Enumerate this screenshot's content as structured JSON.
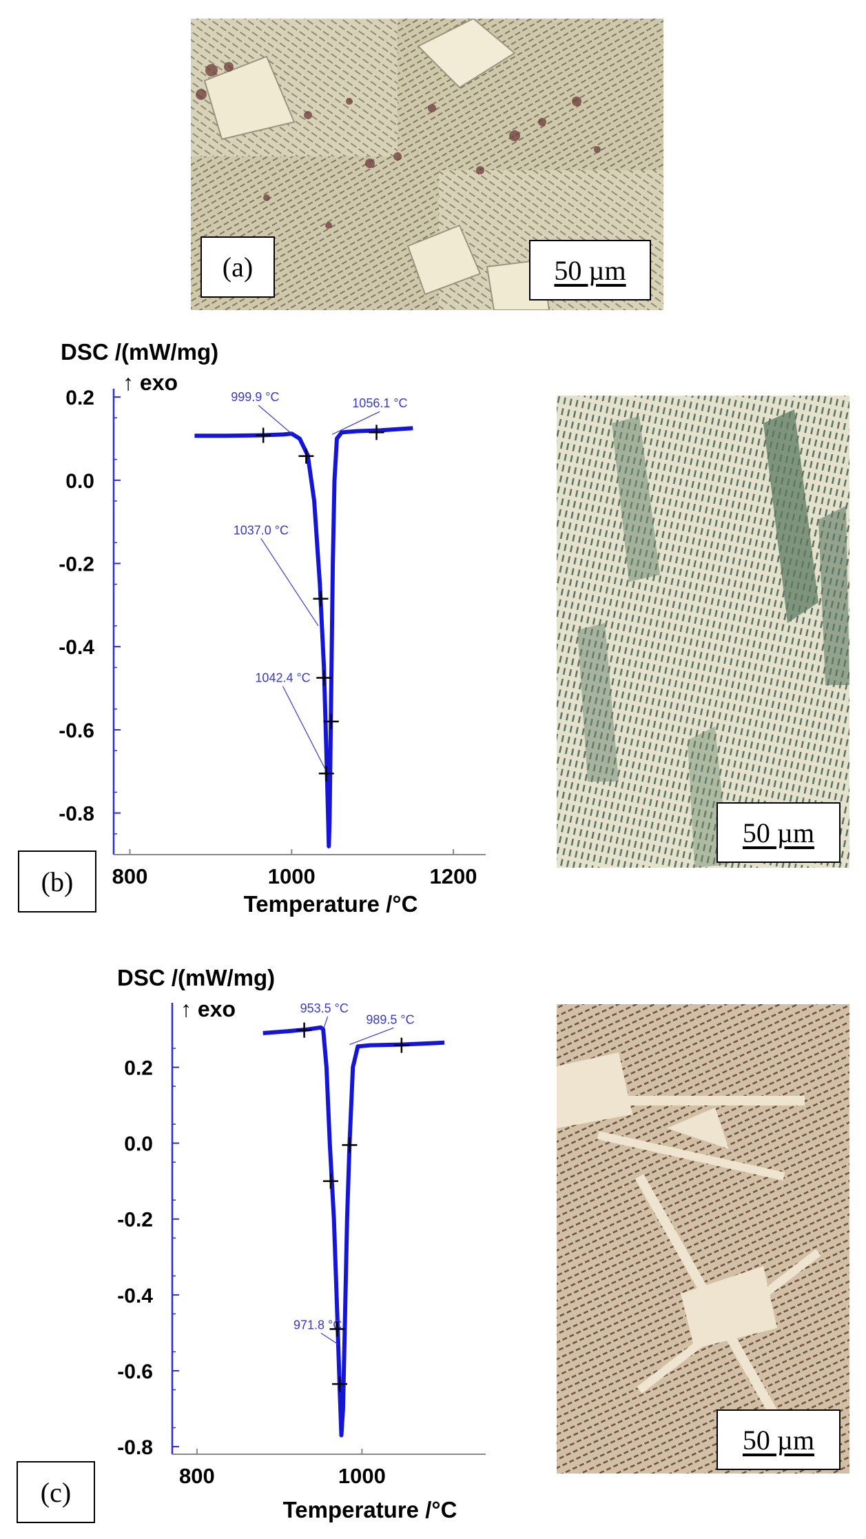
{
  "colors": {
    "curve": "#1515d8",
    "axis": "#2a2ae0",
    "annotation": "#3838c8",
    "text": "#000000"
  },
  "panels": {
    "a": {
      "label": "(a)",
      "scale_bar": "50 µm"
    },
    "b": {
      "label": "(b)",
      "scale_bar": "50 µm"
    },
    "c": {
      "label": "(c)",
      "scale_bar": "50 µm"
    }
  },
  "chart_data": [
    {
      "type": "line",
      "title": "DSC /(mW/mg)",
      "exo_label": "↑ exo",
      "xlabel": "Temperature /°C",
      "ylabel": "DSC /(mW/mg)",
      "xlim": [
        780,
        1240
      ],
      "ylim": [
        -0.9,
        0.22
      ],
      "xticks": [
        800,
        1000,
        1200
      ],
      "xtick_labels": [
        "800",
        "1000",
        "1200"
      ],
      "yticks": [
        0.2,
        0.0,
        -0.2,
        -0.4,
        -0.6,
        -0.8
      ],
      "ytick_labels": [
        "0.2",
        "0.0",
        "-0.2",
        "-0.4",
        "-0.6",
        "-0.8"
      ],
      "series": [
        {
          "points": [
            [
              880,
              0.107
            ],
            [
              920,
              0.107
            ],
            [
              960,
              0.108
            ],
            [
              990,
              0.11
            ],
            [
              1000,
              0.112
            ],
            [
              1010,
              0.1
            ],
            [
              1020,
              0.06
            ],
            [
              1028,
              -0.05
            ],
            [
              1035,
              -0.25
            ],
            [
              1040,
              -0.45
            ],
            [
              1043,
              -0.65
            ],
            [
              1045,
              -0.8
            ],
            [
              1046,
              -0.88
            ],
            [
              1047,
              -0.82
            ],
            [
              1049,
              -0.5
            ],
            [
              1051,
              -0.2
            ],
            [
              1053,
              0.0
            ],
            [
              1056,
              0.1
            ],
            [
              1062,
              0.115
            ],
            [
              1080,
              0.118
            ],
            [
              1110,
              0.12
            ],
            [
              1150,
              0.125
            ]
          ]
        }
      ],
      "markers": [
        {
          "x": 965,
          "y": 0.108
        },
        {
          "x": 1018,
          "y": 0.058
        },
        {
          "x": 1036,
          "y": -0.285
        },
        {
          "x": 1040,
          "y": -0.475
        },
        {
          "x": 1043,
          "y": -0.705
        },
        {
          "x": 1049,
          "y": -0.58
        },
        {
          "x": 1105,
          "y": 0.115
        }
      ],
      "annotations": [
        {
          "text": "999.9 °C",
          "x": 1000,
          "y": 0.112,
          "tx": 925,
          "ty": 0.19
        },
        {
          "text": "1056.1 °C",
          "x": 1050,
          "y": 0.11,
          "tx": 1075,
          "ty": 0.175
        },
        {
          "text": "1037.0 °C",
          "x": 1033,
          "y": -0.35,
          "tx": 928,
          "ty": -0.13
        },
        {
          "text": "1042.4 °C",
          "x": 1043,
          "y": -0.7,
          "tx": 955,
          "ty": -0.485
        }
      ]
    },
    {
      "type": "line",
      "title": "DSC /(mW/mg)",
      "exo_label": "↑ exo",
      "xlabel": "Temperature /°C",
      "ylabel": "DSC /(mW/mg)",
      "xlim": [
        770,
        1150
      ],
      "ylim": [
        -0.82,
        0.37
      ],
      "xticks": [
        800,
        1000
      ],
      "xtick_labels": [
        "800",
        "1000"
      ],
      "yticks": [
        0.2,
        0.0,
        -0.2,
        -0.4,
        -0.6,
        -0.8
      ],
      "ytick_labels": [
        "0.2",
        "0.0",
        "-0.2",
        "-0.4",
        "-0.6",
        "-0.8"
      ],
      "series": [
        {
          "points": [
            [
              880,
              0.29
            ],
            [
              910,
              0.295
            ],
            [
              935,
              0.3
            ],
            [
              950,
              0.305
            ],
            [
              953,
              0.3
            ],
            [
              957,
              0.2
            ],
            [
              961,
              0.0
            ],
            [
              966,
              -0.2
            ],
            [
              970,
              -0.45
            ],
            [
              973,
              -0.65
            ],
            [
              975,
              -0.77
            ],
            [
              977,
              -0.7
            ],
            [
              979,
              -0.5
            ],
            [
              982,
              -0.2
            ],
            [
              985,
              0.0
            ],
            [
              989,
              0.2
            ],
            [
              995,
              0.255
            ],
            [
              1010,
              0.258
            ],
            [
              1050,
              0.26
            ],
            [
              1100,
              0.265
            ]
          ]
        }
      ],
      "markers": [
        {
          "x": 930,
          "y": 0.298
        },
        {
          "x": 962,
          "y": -0.1
        },
        {
          "x": 970,
          "y": -0.49
        },
        {
          "x": 973,
          "y": -0.635
        },
        {
          "x": 985,
          "y": -0.005
        },
        {
          "x": 1048,
          "y": 0.258
        }
      ],
      "annotations": [
        {
          "text": "953.5 °C",
          "x": 954,
          "y": 0.305,
          "tx": 925,
          "ty": 0.345
        },
        {
          "text": "989.5 °C",
          "x": 985,
          "y": 0.26,
          "tx": 1005,
          "ty": 0.315
        },
        {
          "text": "971.8 °C",
          "x": 971,
          "y": -0.53,
          "tx": 917,
          "ty": -0.49
        }
      ]
    }
  ]
}
